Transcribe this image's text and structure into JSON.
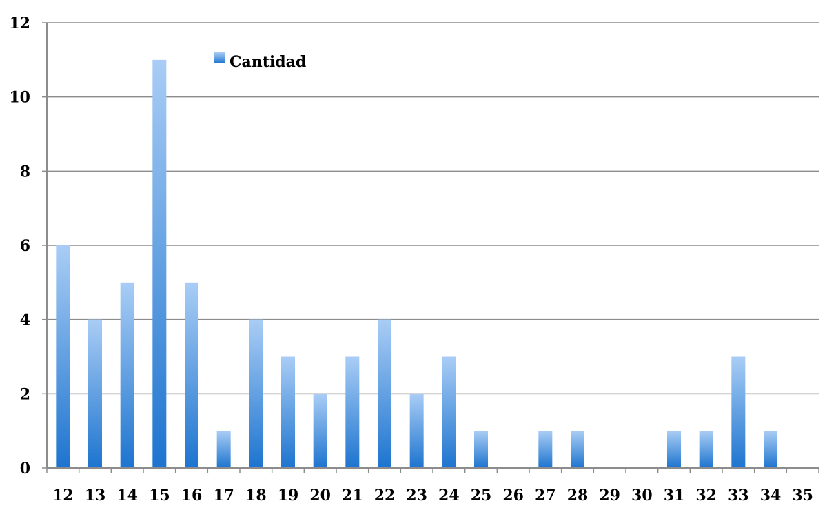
{
  "chart_data": {
    "type": "bar",
    "categories": [
      "12",
      "13",
      "14",
      "15",
      "16",
      "17",
      "18",
      "19",
      "20",
      "21",
      "22",
      "23",
      "24",
      "25",
      "26",
      "27",
      "28",
      "29",
      "30",
      "31",
      "32",
      "33",
      "34",
      "35"
    ],
    "series": [
      {
        "name": "Cantidad",
        "values": [
          6,
          4,
          5,
          11,
          5,
          1,
          4,
          3,
          2,
          3,
          4,
          2,
          3,
          1,
          0,
          1,
          1,
          0,
          0,
          1,
          1,
          3,
          1,
          0
        ]
      }
    ],
    "y_ticks": [
      "0",
      "2",
      "4",
      "6",
      "8",
      "10",
      "12"
    ],
    "ylim": [
      0,
      12
    ],
    "grid": true,
    "legend_position": "top-left",
    "colors": {
      "bar_top": "#a9cdf5",
      "bar_bottom": "#1d74cf",
      "grid": "#8c8c8c",
      "axis": "#8c8c8c"
    }
  }
}
